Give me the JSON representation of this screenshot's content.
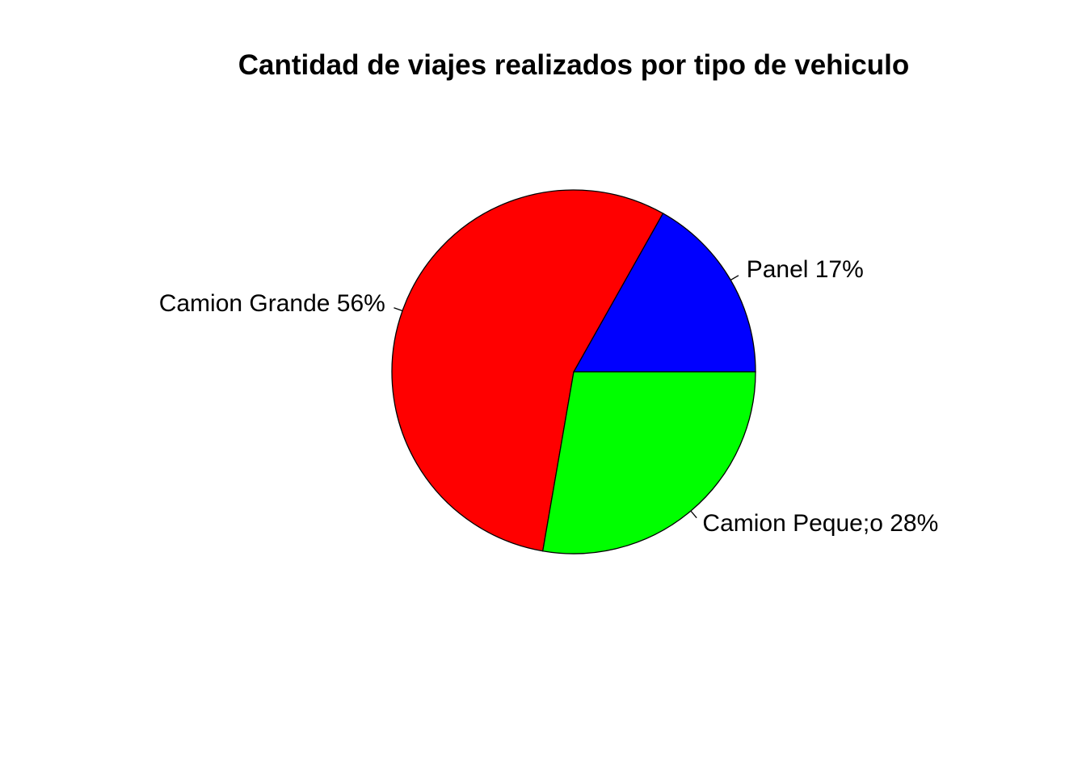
{
  "chart_data": {
    "type": "pie",
    "title": "Cantidad de viajes realizados por tipo de vehiculo",
    "slices": [
      {
        "label": "Panel 17%",
        "category": "Panel",
        "value": 17,
        "color": "#0000FF"
      },
      {
        "label": "Camion Grande 56%",
        "category": "Camion Grande",
        "value": 56,
        "color": "#FF0000"
      },
      {
        "label": "Camion Peque;o 28%",
        "category": "Camion Peque;o",
        "value": 28,
        "color": "#00FF00"
      }
    ],
    "start_angle": "0 degrees (3 o'clock), counter-clockwise",
    "legend": "none"
  }
}
